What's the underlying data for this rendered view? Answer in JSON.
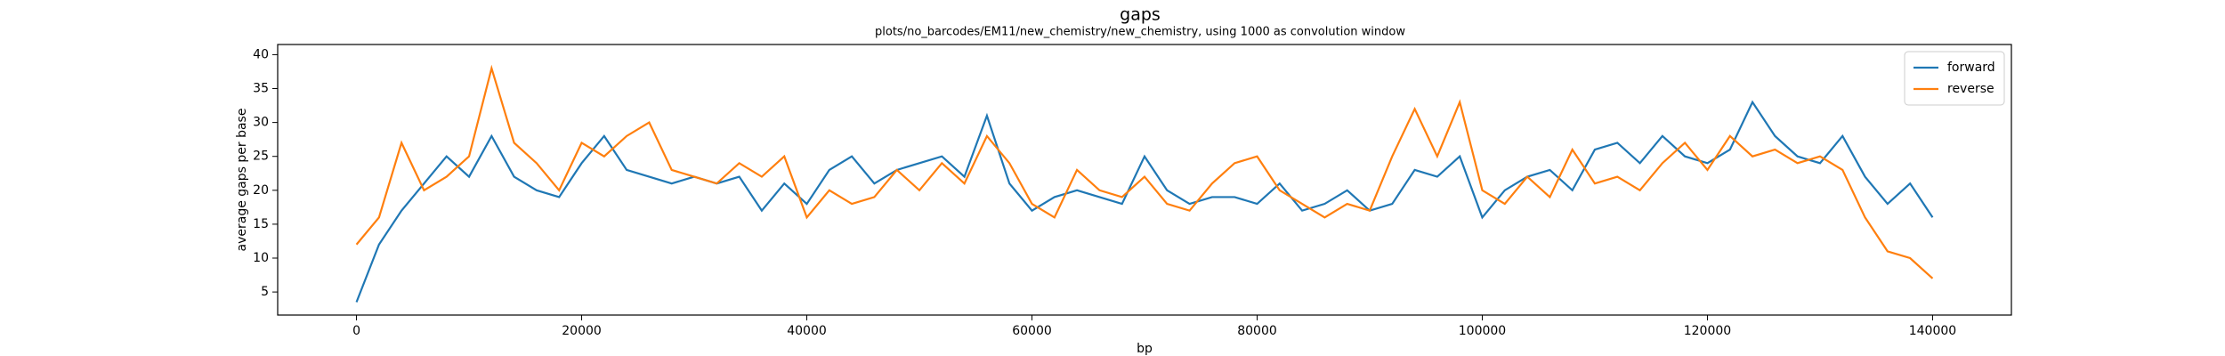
{
  "chart_data": {
    "type": "line",
    "title": "gaps",
    "subtitle": "plots/no_barcodes/EM11/new_chemistry/new_chemistry, using 1000 as convolution window",
    "x_label": "bp",
    "y_label": "average gaps per base",
    "x": [
      0,
      2000,
      4000,
      6000,
      8000,
      10000,
      12000,
      14000,
      16000,
      18000,
      20000,
      22000,
      24000,
      26000,
      28000,
      30000,
      32000,
      34000,
      36000,
      38000,
      40000,
      42000,
      44000,
      46000,
      48000,
      50000,
      52000,
      54000,
      56000,
      58000,
      60000,
      62000,
      64000,
      66000,
      68000,
      70000,
      72000,
      74000,
      76000,
      78000,
      80000,
      82000,
      84000,
      86000,
      88000,
      90000,
      92000,
      94000,
      96000,
      98000,
      100000,
      102000,
      104000,
      106000,
      108000,
      110000,
      112000,
      114000,
      116000,
      118000,
      120000,
      122000,
      124000,
      126000,
      128000,
      130000,
      132000,
      134000,
      136000,
      138000,
      140000
    ],
    "series": [
      {
        "name": "forward",
        "color": "#1f77b4",
        "values": [
          3.5,
          12,
          17,
          21,
          25,
          22,
          28,
          22,
          20,
          19,
          24,
          28,
          23,
          22,
          21,
          22,
          21,
          22,
          17,
          21,
          18,
          23,
          25,
          21,
          23,
          24,
          25,
          22,
          31,
          21,
          17,
          19,
          20,
          19,
          18,
          25,
          20,
          18,
          19,
          19,
          18,
          21,
          17,
          18,
          20,
          17,
          18,
          23,
          22,
          25,
          16,
          20,
          22,
          23,
          20,
          26,
          27,
          24,
          28,
          25,
          24,
          26,
          33,
          28,
          25,
          24,
          28,
          22,
          18,
          21,
          16
        ]
      },
      {
        "name": "reverse",
        "color": "#ff7f0e",
        "values": [
          12,
          16,
          27,
          20,
          22,
          25,
          38,
          27,
          24,
          20,
          27,
          25,
          28,
          30,
          23,
          22,
          21,
          24,
          22,
          25,
          16,
          20,
          18,
          19,
          23,
          20,
          24,
          21,
          28,
          24,
          18,
          16,
          23,
          20,
          19,
          22,
          18,
          17,
          21,
          24,
          25,
          20,
          18,
          16,
          18,
          17,
          25,
          32,
          25,
          33,
          20,
          18,
          22,
          19,
          26,
          21,
          22,
          20,
          24,
          27,
          23,
          28,
          25,
          26,
          24,
          25,
          23,
          16,
          11,
          10,
          7
        ]
      }
    ],
    "xlim": [
      -7000,
      147000
    ],
    "ylim": [
      1.6,
      41.5
    ],
    "xticks": [
      0,
      20000,
      40000,
      60000,
      80000,
      100000,
      120000,
      140000
    ],
    "yticks": [
      5,
      10,
      15,
      20,
      25,
      30,
      35,
      40
    ],
    "legend": "upper right"
  }
}
